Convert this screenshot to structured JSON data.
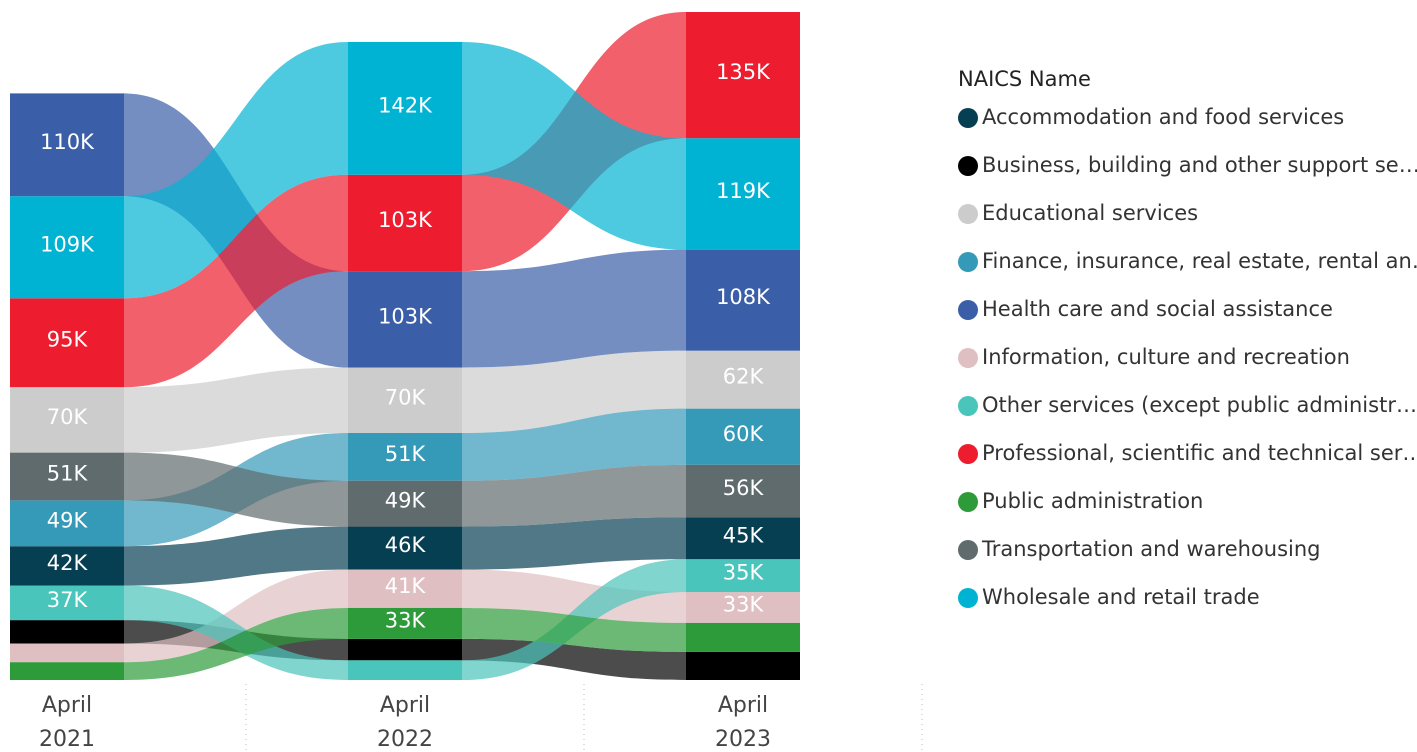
{
  "chart_data": {
    "type": "ribbon",
    "legend_title": "NAICS Name",
    "categories": [
      "April 2021",
      "April 2022",
      "April 2023"
    ],
    "series": [
      {
        "name": "Accommodation and food services",
        "color": "#073f52",
        "values": [
          42000,
          46000,
          45000
        ],
        "value_labels": [
          "42K",
          "46K",
          "45K"
        ]
      },
      {
        "name": "Business, building and other support se…",
        "color": "#000000",
        "values": [
          25000,
          23000,
          30000
        ],
        "value_labels": [
          null,
          null,
          null
        ]
      },
      {
        "name": "Educational services",
        "color": "#cccccc",
        "values": [
          70000,
          70000,
          62000
        ],
        "value_labels": [
          "70K",
          "70K",
          "62K"
        ]
      },
      {
        "name": "Finance, insurance, real estate, rental an…",
        "color": "#3599b8",
        "values": [
          49000,
          51000,
          60000
        ],
        "value_labels": [
          "49K",
          "51K",
          "60K"
        ]
      },
      {
        "name": "Health care and social assistance",
        "color": "#3b5ea8",
        "values": [
          110000,
          103000,
          108000
        ],
        "value_labels": [
          "110K",
          "103K",
          "108K"
        ]
      },
      {
        "name": "Information, culture and recreation",
        "color": "#dfbfc2",
        "values": [
          20000,
          41000,
          33000
        ],
        "value_labels": [
          null,
          "41K",
          "33K"
        ]
      },
      {
        "name": "Other services (except public administr…",
        "color": "#4ac5bb",
        "values": [
          37000,
          21000,
          35000
        ],
        "value_labels": [
          "37K",
          null,
          "35K"
        ]
      },
      {
        "name": "Professional, scientific and technical ser…",
        "color": "#ed1c2e",
        "values": [
          95000,
          103000,
          135000
        ],
        "value_labels": [
          "95K",
          "103K",
          "135K"
        ]
      },
      {
        "name": "Public administration",
        "color": "#2e9b3a",
        "values": [
          19000,
          33000,
          31000
        ],
        "value_labels": [
          null,
          "33K",
          null
        ]
      },
      {
        "name": "Transportation and warehousing",
        "color": "#5f6b6d",
        "values": [
          51000,
          49000,
          56000
        ],
        "value_labels": [
          "51K",
          "49K",
          "56K"
        ]
      },
      {
        "name": "Wholesale and retail trade",
        "color": "#01b3d3",
        "values": [
          109000,
          142000,
          119000
        ],
        "value_labels": [
          "109K",
          "142K",
          "119K"
        ]
      }
    ]
  }
}
